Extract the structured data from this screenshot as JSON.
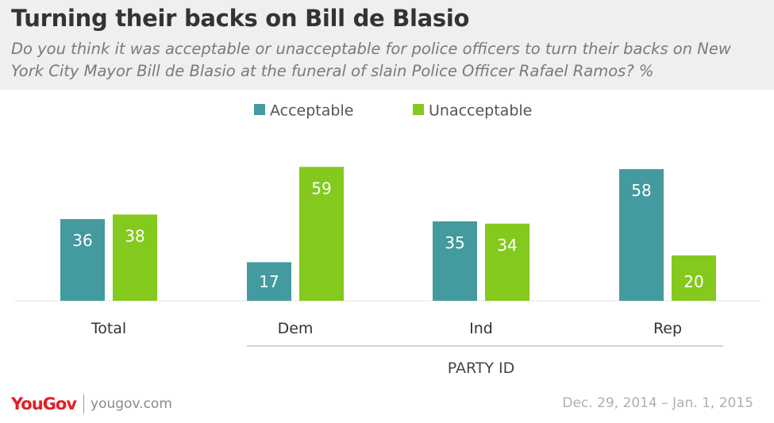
{
  "header": {
    "title": "Turning their backs on Bill de Blasio",
    "subtitle": "Do you think it was acceptable or unacceptable for police officers to turn their backs on New York City Mayor Bill de Blasio at the funeral of slain Police Officer Rafael Ramos? %"
  },
  "footer": {
    "logo": "YouGov",
    "site": "yougov.com",
    "date": "Dec. 29, 2014 – Jan. 1, 2015"
  },
  "chart_data": {
    "type": "bar",
    "categories": [
      "Total",
      "Dem",
      "Ind",
      "Rep"
    ],
    "group_label": "PARTY ID",
    "series": [
      {
        "name": "Acceptable",
        "values": [
          36,
          17,
          35,
          58
        ],
        "color": "#439a9f"
      },
      {
        "name": "Unacceptable",
        "values": [
          38,
          59,
          34,
          20
        ],
        "color": "#84c91d"
      }
    ],
    "ylim": [
      0,
      60
    ],
    "legend": "top-center",
    "grid": false,
    "xlabel": "",
    "ylabel": ""
  }
}
